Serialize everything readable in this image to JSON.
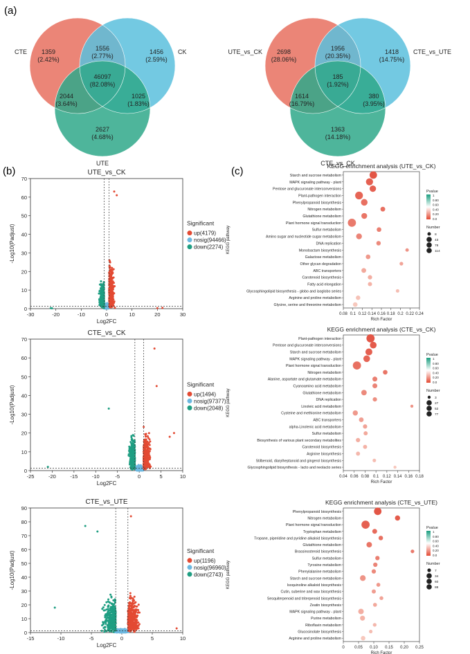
{
  "panel_labels": {
    "a": "(a)",
    "b": "(b)",
    "c": "(c)"
  },
  "chart_data": [
    {
      "type": "venn",
      "sets": [
        "CTE",
        "CK",
        "UTE"
      ],
      "colors": [
        "#e8705f",
        "#5bbfdd",
        "#2fa88a"
      ],
      "regions": [
        {
          "sets": [
            "CTE"
          ],
          "count": "1359",
          "pct": "(2.42%)"
        },
        {
          "sets": [
            "CTE",
            "CK"
          ],
          "count": "1556",
          "pct": "(2.77%)"
        },
        {
          "sets": [
            "CK"
          ],
          "count": "1456",
          "pct": "(2.59%)"
        },
        {
          "sets": [
            "CTE",
            "CK",
            "UTE"
          ],
          "count": "46097",
          "pct": "(82.08%)"
        },
        {
          "sets": [
            "CTE",
            "UTE"
          ],
          "count": "2044",
          "pct": "(3.64%)"
        },
        {
          "sets": [
            "CK",
            "UTE"
          ],
          "count": "1025",
          "pct": "(1.83%)"
        },
        {
          "sets": [
            "UTE"
          ],
          "count": "2627",
          "pct": "(4.68%)"
        }
      ]
    },
    {
      "type": "venn",
      "sets": [
        "UTE_vs_CK",
        "CTE_vs_UTE",
        "CTE_vs_CK"
      ],
      "colors": [
        "#e8705f",
        "#5bbfdd",
        "#2fa88a"
      ],
      "regions": [
        {
          "sets": [
            "UTE_vs_CK"
          ],
          "count": "2698",
          "pct": "(28.06%)"
        },
        {
          "sets": [
            "UTE_vs_CK",
            "CTE_vs_UTE"
          ],
          "count": "1956",
          "pct": "(20.35%)"
        },
        {
          "sets": [
            "CTE_vs_UTE"
          ],
          "count": "1418",
          "pct": "(14.75%)"
        },
        {
          "sets": [
            "UTE_vs_CK",
            "CTE_vs_UTE",
            "CTE_vs_CK"
          ],
          "count": "185",
          "pct": "(1.92%)"
        },
        {
          "sets": [
            "UTE_vs_CK",
            "CTE_vs_CK"
          ],
          "count": "1614",
          "pct": "(16.79%)"
        },
        {
          "sets": [
            "CTE_vs_UTE",
            "CTE_vs_CK"
          ],
          "count": "380",
          "pct": "(3.95%)"
        },
        {
          "sets": [
            "CTE_vs_CK"
          ],
          "count": "1363",
          "pct": "(14.18%)"
        }
      ]
    },
    {
      "type": "scatter",
      "title": "UTE_vs_CK",
      "xlabel": "Log2FC",
      "ylabel": "-Log10(Padjust)",
      "xlim": [
        -30,
        30
      ],
      "ylim": [
        0,
        70
      ],
      "xticks": [
        -30,
        -20,
        -10,
        0,
        10,
        20,
        30
      ],
      "yticks": [
        0,
        10,
        20,
        30,
        40,
        50,
        60,
        70
      ],
      "vlines": [
        -1,
        1
      ],
      "hline": 1.3,
      "legend_title": "Significant",
      "series": [
        {
          "name": "up(4179)",
          "color": "#e34a33"
        },
        {
          "name": "nosig(94466)",
          "color": "#6cb8e0"
        },
        {
          "name": "down(2274)",
          "color": "#1e9e82"
        }
      ]
    },
    {
      "type": "scatter",
      "title": "CTE_vs_CK",
      "xlabel": "Log2FC",
      "ylabel": "-Log10(Padjust)",
      "xlim": [
        -25,
        10
      ],
      "ylim": [
        0,
        70
      ],
      "xticks": [
        -25,
        -20,
        -15,
        -10,
        -5,
        0,
        5,
        10
      ],
      "yticks": [
        0,
        10,
        20,
        30,
        40,
        50,
        60,
        70
      ],
      "vlines": [
        -1,
        1
      ],
      "hline": 1.3,
      "legend_title": "Significant",
      "series": [
        {
          "name": "up(1494)",
          "color": "#e34a33"
        },
        {
          "name": "nosig(97377)",
          "color": "#6cb8e0"
        },
        {
          "name": "down(2048)",
          "color": "#1e9e82"
        }
      ]
    },
    {
      "type": "scatter",
      "title": "CTE_vs_UTE",
      "xlabel": "Log2FC",
      "ylabel": "-Log10(Padjust)",
      "xlim": [
        -15,
        10
      ],
      "ylim": [
        0,
        90
      ],
      "xticks": [
        -15,
        -10,
        -5,
        0,
        5,
        10
      ],
      "yticks": [
        0,
        10,
        20,
        30,
        40,
        50,
        60,
        70,
        80,
        90
      ],
      "vlines": [
        -1,
        1
      ],
      "hline": 1.3,
      "legend_title": "Significant",
      "series": [
        {
          "name": "up(1196)",
          "color": "#e34a33"
        },
        {
          "name": "nosig(96960)",
          "color": "#6cb8e0"
        },
        {
          "name": "down(2743)",
          "color": "#1e9e82"
        }
      ]
    },
    {
      "type": "scatter",
      "title": "KEGG enrichment analysis (UTE_vs_CK)",
      "xlabel": "Rich Factor",
      "ylabel": "KEGG pathway",
      "xlim": [
        0.08,
        0.24
      ],
      "xticks": [
        "0.08",
        "0.1",
        "0.12",
        "0.14",
        "0.16",
        "0.18",
        "0.2",
        "0.22",
        "0.24"
      ],
      "pvalue_legend": {
        "title": "Pvalue",
        "ticks": [
          "1",
          "0.80",
          "0.60",
          "0.40",
          "0.20",
          "0.0"
        ]
      },
      "size_legend": {
        "title": "Number",
        "values": [
          "8",
          "43",
          "78",
          "114"
        ]
      },
      "points": [
        {
          "term": "Starch and sucrose metabolism",
          "rich": 0.143,
          "size": 90,
          "p": 0.0
        },
        {
          "term": "MAPK signaling pathway - plant",
          "rich": 0.135,
          "size": 80,
          "p": 0.02
        },
        {
          "term": "Pentose and glucuronate interconversions",
          "rich": 0.142,
          "size": 60,
          "p": 0.02
        },
        {
          "term": "Plant-pathogen interaction",
          "rich": 0.113,
          "size": 100,
          "p": 0.03
        },
        {
          "term": "Phenylpropanoid biosynthesis",
          "rich": 0.124,
          "size": 65,
          "p": 0.05
        },
        {
          "term": "Nitrogen metabolism",
          "rich": 0.163,
          "size": 25,
          "p": 0.05
        },
        {
          "term": "Glutathione metabolism",
          "rich": 0.124,
          "size": 45,
          "p": 0.06
        },
        {
          "term": "Plant hormone signal transduction",
          "rich": 0.098,
          "size": 114,
          "p": 0.07
        },
        {
          "term": "Sulfur metabolism",
          "rich": 0.155,
          "size": 22,
          "p": 0.08
        },
        {
          "term": "Amino sugar and nucleotide sugar metabolism",
          "rich": 0.113,
          "size": 45,
          "p": 0.09
        },
        {
          "term": "DNA replication",
          "rich": 0.154,
          "size": 20,
          "p": 0.1
        },
        {
          "term": "Monobactam biosynthesis",
          "rich": 0.214,
          "size": 8,
          "p": 0.12
        },
        {
          "term": "Galactose metabolism",
          "rich": 0.132,
          "size": 22,
          "p": 0.13
        },
        {
          "term": "Other glycan degradation",
          "rich": 0.202,
          "size": 10,
          "p": 0.15
        },
        {
          "term": "ABC transporters",
          "rich": 0.123,
          "size": 25,
          "p": 0.16
        },
        {
          "term": "Carotenoid biosynthesis",
          "rich": 0.136,
          "size": 18,
          "p": 0.17
        },
        {
          "term": "Fatty acid elongation",
          "rich": 0.136,
          "size": 16,
          "p": 0.18
        },
        {
          "term": "Glycosphingolipid biosynthesis - globo and isoglobo series",
          "rich": 0.194,
          "size": 8,
          "p": 0.2
        },
        {
          "term": "Arginine and proline metabolism",
          "rich": 0.111,
          "size": 20,
          "p": 0.21
        },
        {
          "term": "Glycine, serine and threonine metabolism",
          "rich": 0.105,
          "size": 22,
          "p": 0.22
        }
      ]
    },
    {
      "type": "scatter",
      "title": "KEGG enrichment analysis (CTE_vs_CK)",
      "xlabel": "Rich Factor",
      "ylabel": "KEGG pathway",
      "xlim": [
        0.04,
        0.18
      ],
      "xticks": [
        "0.04",
        "0.06",
        "0.08",
        "0.1",
        "0.12",
        "0.14",
        "0.16",
        "0.18"
      ],
      "pvalue_legend": {
        "title": "Pvalue",
        "ticks": [
          "1",
          "0.80",
          "0.60",
          "0.40",
          "0.20",
          "0.0"
        ]
      },
      "size_legend": {
        "title": "Number",
        "values": [
          "3",
          "27",
          "52",
          "77"
        ]
      },
      "points": [
        {
          "term": "Plant-pathogen interaction",
          "rich": 0.09,
          "size": 77,
          "p": 0.0
        },
        {
          "term": "Pentose and glucuronate interconversions",
          "rich": 0.095,
          "size": 45,
          "p": 0.01
        },
        {
          "term": "Starch and sucrose metabolism",
          "rich": 0.087,
          "size": 50,
          "p": 0.02
        },
        {
          "term": "MAPK signaling pathway - plant",
          "rich": 0.083,
          "size": 45,
          "p": 0.03
        },
        {
          "term": "Plant hormone signal transduction",
          "rich": 0.065,
          "size": 77,
          "p": 0.05
        },
        {
          "term": "Nitrogen metabolism",
          "rich": 0.117,
          "size": 15,
          "p": 0.06
        },
        {
          "term": "Alanine, aspartate and glutamate metabolism",
          "rich": 0.098,
          "size": 18,
          "p": 0.08
        },
        {
          "term": "Cyanoamino acid metabolism",
          "rich": 0.098,
          "size": 18,
          "p": 0.09
        },
        {
          "term": "Glutathione metabolism",
          "rich": 0.078,
          "size": 25,
          "p": 0.1
        },
        {
          "term": "DNA replication",
          "rich": 0.098,
          "size": 12,
          "p": 0.11
        },
        {
          "term": "Linoleic acid metabolism",
          "rich": 0.166,
          "size": 3,
          "p": 0.12
        },
        {
          "term": "Cysteine and methionine metabolism",
          "rich": 0.062,
          "size": 22,
          "p": 0.13
        },
        {
          "term": "ABC transporters",
          "rich": 0.073,
          "size": 16,
          "p": 0.14
        },
        {
          "term": "alpha-Linolenic acid metabolism",
          "rich": 0.08,
          "size": 12,
          "p": 0.15
        },
        {
          "term": "Sulfur metabolism",
          "rich": 0.081,
          "size": 10,
          "p": 0.16
        },
        {
          "term": "Biosynthesis of various plant secondary metabolites",
          "rich": 0.067,
          "size": 12,
          "p": 0.17
        },
        {
          "term": "Carotenoid biosynthesis",
          "rich": 0.08,
          "size": 10,
          "p": 0.18
        },
        {
          "term": "Arginine biosynthesis",
          "rich": 0.067,
          "size": 10,
          "p": 0.19
        },
        {
          "term": "Stilbenoid, diarylheptanoid and gingerol biosynthesis",
          "rich": 0.097,
          "size": 6,
          "p": 0.2
        },
        {
          "term": "Glycosphingolipid biosynthesis - lacto and neolacto series",
          "rich": 0.135,
          "size": 3,
          "p": 0.22
        }
      ]
    },
    {
      "type": "scatter",
      "title": "KEGG enrichment analysis (CTE_vs_UTE)",
      "xlabel": "Rich Factor",
      "ylabel": "KEGG pathway",
      "xlim": [
        0.0,
        0.25
      ],
      "xticks": [
        "0",
        "0.05",
        "0.10",
        "0.15",
        "0.20",
        "0.25"
      ],
      "pvalue_legend": {
        "title": "Pvalue",
        "ticks": [
          "1",
          "0.80",
          "0.60",
          "0.40",
          "0.20",
          "0.0"
        ]
      },
      "size_legend": {
        "title": "Number",
        "values": [
          "7",
          "34",
          "60",
          "88"
        ]
      },
      "points": [
        {
          "term": "Phenylpropanoid biosynthesis",
          "rich": 0.113,
          "size": 70,
          "p": 0.0
        },
        {
          "term": "Nitrogen metabolism",
          "rich": 0.178,
          "size": 25,
          "p": 0.01
        },
        {
          "term": "Plant hormone signal transduction",
          "rich": 0.073,
          "size": 88,
          "p": 0.02
        },
        {
          "term": "Tryptophan metabolism",
          "rich": 0.103,
          "size": 20,
          "p": 0.04
        },
        {
          "term": "Tropane, piperidine and pyridine alkaloid biosynthesis",
          "rich": 0.123,
          "size": 16,
          "p": 0.05
        },
        {
          "term": "Glutathione metabolism",
          "rich": 0.085,
          "size": 30,
          "p": 0.06
        },
        {
          "term": "Brassinosteroid biosynthesis",
          "rich": 0.227,
          "size": 7,
          "p": 0.07
        },
        {
          "term": "Sulfur metabolism",
          "rich": 0.112,
          "size": 14,
          "p": 0.08
        },
        {
          "term": "Tyrosine metabolism",
          "rich": 0.105,
          "size": 14,
          "p": 0.09
        },
        {
          "term": "Phenylalanine metabolism",
          "rich": 0.1,
          "size": 14,
          "p": 0.1
        },
        {
          "term": "Starch and sucrose metabolism",
          "rich": 0.064,
          "size": 34,
          "p": 0.12
        },
        {
          "term": "Isoquinoline alkaloid biosynthesis",
          "rich": 0.115,
          "size": 10,
          "p": 0.13
        },
        {
          "term": "Cutin, suberine and wax biosynthesis",
          "rich": 0.1,
          "size": 12,
          "p": 0.14
        },
        {
          "term": "Sesquiterpenoid and triterpenoid biosynthesis",
          "rich": 0.125,
          "size": 9,
          "p": 0.15
        },
        {
          "term": "Zeatin biosynthesis",
          "rich": 0.104,
          "size": 10,
          "p": 0.16
        },
        {
          "term": "MAPK signaling pathway - plant",
          "rich": 0.058,
          "size": 30,
          "p": 0.17
        },
        {
          "term": "Purine metabolism",
          "rich": 0.063,
          "size": 22,
          "p": 0.18
        },
        {
          "term": "Riboflavin metabolism",
          "rich": 0.103,
          "size": 8,
          "p": 0.19
        },
        {
          "term": "Glucosinolate biosynthesis",
          "rich": 0.09,
          "size": 7,
          "p": 0.2
        },
        {
          "term": "Arginine and proline metabolism",
          "rich": 0.065,
          "size": 16,
          "p": 0.22
        }
      ]
    }
  ]
}
